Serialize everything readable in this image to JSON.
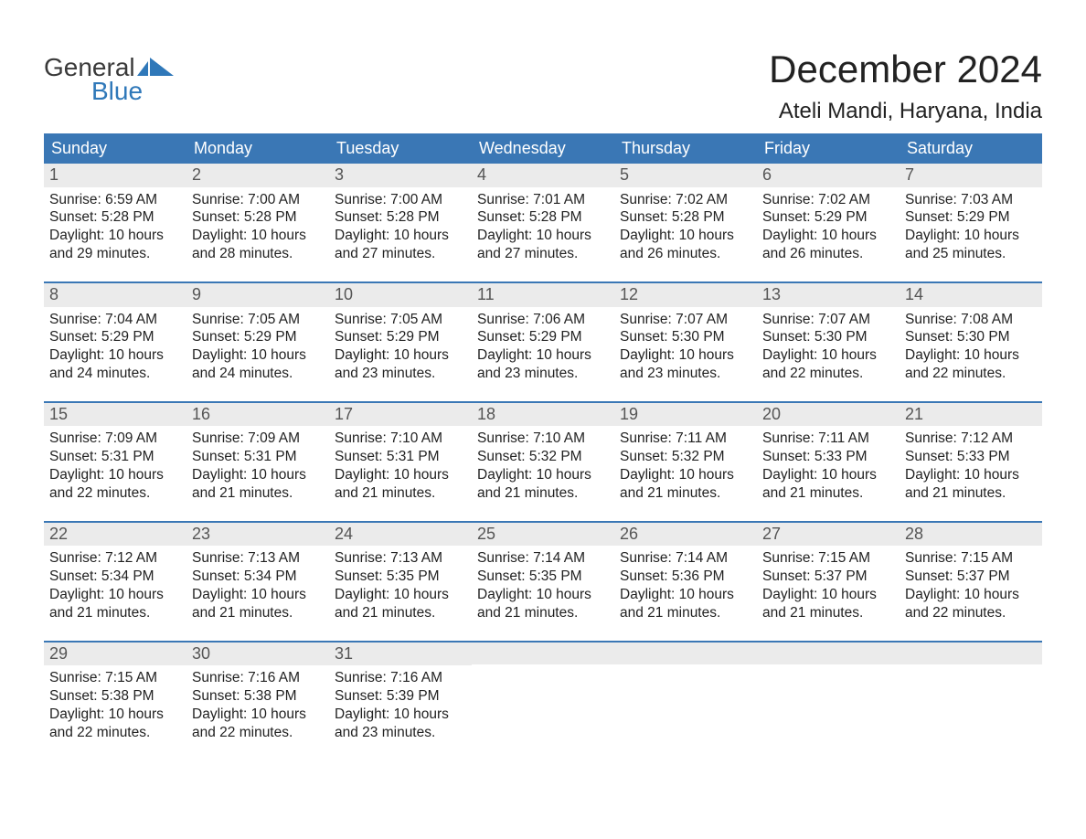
{
  "logo": {
    "text_general": "General",
    "text_blue": "Blue",
    "icon_color": "#2f78b9",
    "general_color": "#3a3a3a"
  },
  "title": "December 2024",
  "location": "Ateli Mandi, Haryana, India",
  "colors": {
    "header_bg": "#3a77b5",
    "header_text": "#ffffff",
    "daynum_bg": "#ebebeb",
    "daynum_text": "#555555",
    "body_text": "#222222",
    "week_border": "#3a77b5",
    "page_bg": "#ffffff"
  },
  "weekdays": [
    "Sunday",
    "Monday",
    "Tuesday",
    "Wednesday",
    "Thursday",
    "Friday",
    "Saturday"
  ],
  "labels": {
    "sunrise": "Sunrise:",
    "sunset": "Sunset:",
    "daylight": "Daylight:"
  },
  "weeks": [
    [
      {
        "day": 1,
        "sunrise": "6:59 AM",
        "sunset": "5:28 PM",
        "daylight": "10 hours and 29 minutes."
      },
      {
        "day": 2,
        "sunrise": "7:00 AM",
        "sunset": "5:28 PM",
        "daylight": "10 hours and 28 minutes."
      },
      {
        "day": 3,
        "sunrise": "7:00 AM",
        "sunset": "5:28 PM",
        "daylight": "10 hours and 27 minutes."
      },
      {
        "day": 4,
        "sunrise": "7:01 AM",
        "sunset": "5:28 PM",
        "daylight": "10 hours and 27 minutes."
      },
      {
        "day": 5,
        "sunrise": "7:02 AM",
        "sunset": "5:28 PM",
        "daylight": "10 hours and 26 minutes."
      },
      {
        "day": 6,
        "sunrise": "7:02 AM",
        "sunset": "5:29 PM",
        "daylight": "10 hours and 26 minutes."
      },
      {
        "day": 7,
        "sunrise": "7:03 AM",
        "sunset": "5:29 PM",
        "daylight": "10 hours and 25 minutes."
      }
    ],
    [
      {
        "day": 8,
        "sunrise": "7:04 AM",
        "sunset": "5:29 PM",
        "daylight": "10 hours and 24 minutes."
      },
      {
        "day": 9,
        "sunrise": "7:05 AM",
        "sunset": "5:29 PM",
        "daylight": "10 hours and 24 minutes."
      },
      {
        "day": 10,
        "sunrise": "7:05 AM",
        "sunset": "5:29 PM",
        "daylight": "10 hours and 23 minutes."
      },
      {
        "day": 11,
        "sunrise": "7:06 AM",
        "sunset": "5:29 PM",
        "daylight": "10 hours and 23 minutes."
      },
      {
        "day": 12,
        "sunrise": "7:07 AM",
        "sunset": "5:30 PM",
        "daylight": "10 hours and 23 minutes."
      },
      {
        "day": 13,
        "sunrise": "7:07 AM",
        "sunset": "5:30 PM",
        "daylight": "10 hours and 22 minutes."
      },
      {
        "day": 14,
        "sunrise": "7:08 AM",
        "sunset": "5:30 PM",
        "daylight": "10 hours and 22 minutes."
      }
    ],
    [
      {
        "day": 15,
        "sunrise": "7:09 AM",
        "sunset": "5:31 PM",
        "daylight": "10 hours and 22 minutes."
      },
      {
        "day": 16,
        "sunrise": "7:09 AM",
        "sunset": "5:31 PM",
        "daylight": "10 hours and 21 minutes."
      },
      {
        "day": 17,
        "sunrise": "7:10 AM",
        "sunset": "5:31 PM",
        "daylight": "10 hours and 21 minutes."
      },
      {
        "day": 18,
        "sunrise": "7:10 AM",
        "sunset": "5:32 PM",
        "daylight": "10 hours and 21 minutes."
      },
      {
        "day": 19,
        "sunrise": "7:11 AM",
        "sunset": "5:32 PM",
        "daylight": "10 hours and 21 minutes."
      },
      {
        "day": 20,
        "sunrise": "7:11 AM",
        "sunset": "5:33 PM",
        "daylight": "10 hours and 21 minutes."
      },
      {
        "day": 21,
        "sunrise": "7:12 AM",
        "sunset": "5:33 PM",
        "daylight": "10 hours and 21 minutes."
      }
    ],
    [
      {
        "day": 22,
        "sunrise": "7:12 AM",
        "sunset": "5:34 PM",
        "daylight": "10 hours and 21 minutes."
      },
      {
        "day": 23,
        "sunrise": "7:13 AM",
        "sunset": "5:34 PM",
        "daylight": "10 hours and 21 minutes."
      },
      {
        "day": 24,
        "sunrise": "7:13 AM",
        "sunset": "5:35 PM",
        "daylight": "10 hours and 21 minutes."
      },
      {
        "day": 25,
        "sunrise": "7:14 AM",
        "sunset": "5:35 PM",
        "daylight": "10 hours and 21 minutes."
      },
      {
        "day": 26,
        "sunrise": "7:14 AM",
        "sunset": "5:36 PM",
        "daylight": "10 hours and 21 minutes."
      },
      {
        "day": 27,
        "sunrise": "7:15 AM",
        "sunset": "5:37 PM",
        "daylight": "10 hours and 21 minutes."
      },
      {
        "day": 28,
        "sunrise": "7:15 AM",
        "sunset": "5:37 PM",
        "daylight": "10 hours and 22 minutes."
      }
    ],
    [
      {
        "day": 29,
        "sunrise": "7:15 AM",
        "sunset": "5:38 PM",
        "daylight": "10 hours and 22 minutes."
      },
      {
        "day": 30,
        "sunrise": "7:16 AM",
        "sunset": "5:38 PM",
        "daylight": "10 hours and 22 minutes."
      },
      {
        "day": 31,
        "sunrise": "7:16 AM",
        "sunset": "5:39 PM",
        "daylight": "10 hours and 23 minutes."
      },
      null,
      null,
      null,
      null
    ]
  ]
}
